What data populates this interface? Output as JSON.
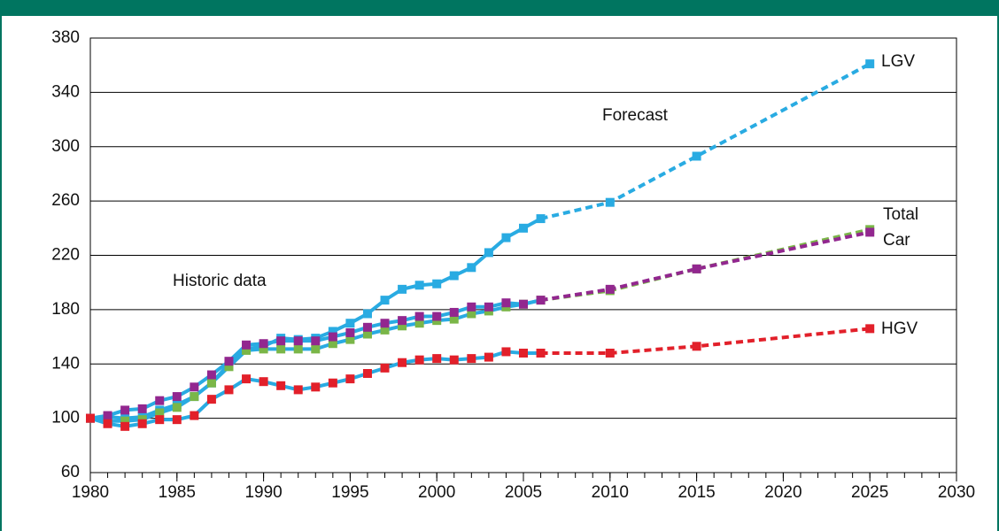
{
  "chart_data": {
    "type": "line",
    "x": [
      1980,
      1981,
      1982,
      1983,
      1984,
      1985,
      1986,
      1987,
      1988,
      1989,
      1990,
      1991,
      1992,
      1993,
      1994,
      1995,
      1996,
      1997,
      1998,
      1999,
      2000,
      2001,
      2002,
      2003,
      2004,
      2005,
      2006,
      2010,
      2015,
      2025
    ],
    "series": [
      {
        "name": "LGV",
        "color": "#29abe2",
        "values": [
          100,
          101,
          100,
          101,
          106,
          110,
          116,
          126,
          140,
          151,
          153,
          159,
          158,
          159,
          164,
          170,
          177,
          187,
          195,
          198,
          199,
          205,
          211,
          222,
          233,
          240,
          247,
          259,
          293,
          361
        ]
      },
      {
        "name": "Car",
        "color": "#7ab648",
        "values": [
          100,
          98,
          98,
          99,
          104,
          108,
          116,
          126,
          138,
          150,
          151,
          151,
          151,
          151,
          155,
          158,
          162,
          165,
          168,
          170,
          172,
          173,
          177,
          179,
          182,
          184,
          187,
          194,
          210,
          239
        ]
      },
      {
        "name": "Total",
        "color": "#92278f",
        "values": [
          100,
          102,
          106,
          107,
          113,
          116,
          123,
          132,
          142,
          154,
          155,
          157,
          157,
          157,
          160,
          163,
          167,
          170,
          172,
          175,
          175,
          178,
          182,
          182,
          185,
          184,
          187,
          195,
          210,
          237
        ]
      },
      {
        "name": "HGV",
        "color": "#e2202a",
        "values": [
          100,
          96,
          94,
          96,
          99,
          99,
          102,
          114,
          121,
          129,
          127,
          124,
          121,
          123,
          126,
          129,
          133,
          137,
          141,
          143,
          144,
          143,
          144,
          145,
          149,
          148,
          148,
          148,
          153,
          166
        ]
      }
    ],
    "historic_line_color": "#29abe2",
    "forecast_start": 2006,
    "annotations": {
      "forecast": "Forecast",
      "historic": "Historic data"
    },
    "xlim": [
      1980,
      2030
    ],
    "xticks": [
      1980,
      1985,
      1990,
      1995,
      2000,
      2005,
      2010,
      2015,
      2020,
      2025,
      2030
    ],
    "ylim": [
      60,
      380
    ],
    "yticks": [
      60,
      100,
      140,
      180,
      220,
      260,
      300,
      340,
      380
    ],
    "grid": true
  }
}
